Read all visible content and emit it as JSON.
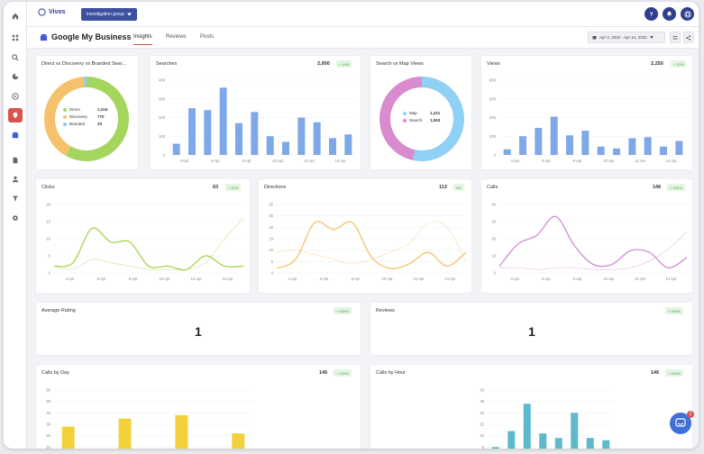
{
  "topbar": {
    "logo_text": "Vivos",
    "workspace_label": "investigation group",
    "help_icon": "question-icon",
    "bell_icon": "bell-icon",
    "user_icon": "user-icon"
  },
  "sidebar": {
    "items": [
      "home-icon",
      "grid-icon",
      "search-icon",
      "chart-icon",
      "chat-icon",
      "location-icon",
      "gmb-icon",
      "document-icon",
      "user-icon",
      "filter-icon",
      "settings-icon"
    ]
  },
  "subbar": {
    "title": "Google My Business",
    "tabs": [
      {
        "label": "Insights"
      },
      {
        "label": "Reviews"
      },
      {
        "label": "Posts"
      }
    ],
    "date_range": "Apr 3, 2022 - Apr 14, 2022"
  },
  "colors": {
    "direct": "#a4d65e",
    "discovery": "#f5c26b",
    "branded": "#8fc8f0",
    "bars": "#7fa8e8",
    "maps": "#8fd0f5",
    "search": "#d98bcf",
    "clicks": "#a8d34d",
    "directions": "#f2c368",
    "calls": "#d28bd6",
    "calls_by_day": "#f2d13c",
    "calls_by_hour": "#5fb9cc"
  },
  "cards": {
    "direct_discovery": {
      "title": "Direct vs Discovery vs Branded Sear...",
      "legend": [
        {
          "label": "Direct",
          "value": "1,104"
        },
        {
          "label": "Discovery",
          "value": "770"
        },
        {
          "label": "Branded",
          "value": "20"
        }
      ]
    },
    "searches": {
      "title": "Searches",
      "value": "2,000",
      "badge": "+ 10%"
    },
    "search_maps": {
      "title": "Search vs Map Views",
      "legend": [
        {
          "label": "Map",
          "value": "1,221"
        },
        {
          "label": "Search",
          "value": "1,063"
        }
      ]
    },
    "views": {
      "title": "Views",
      "value": "2,250",
      "badge": "+ 12%"
    },
    "clicks": {
      "title": "Clicks",
      "value": "63",
      "badge": "+ 21%"
    },
    "directions": {
      "title": "Directions",
      "value": "113",
      "badge": "0%"
    },
    "calls": {
      "title": "Calls",
      "value": "146",
      "badge": "+ 100%"
    },
    "average_rating": {
      "title": "Average Rating",
      "value": "1",
      "badge": "+ 100%"
    },
    "reviews": {
      "title": "Reviews",
      "value": "1",
      "badge": "+ 100%"
    },
    "calls_by_day": {
      "title": "Calls by Day",
      "value": "146",
      "badge": "+ 100%"
    },
    "calls_by_hour": {
      "title": "Calls by Hour",
      "value": "146",
      "badge": "+ 100%"
    }
  },
  "chat": {
    "notification_count": "1"
  },
  "chart_data": [
    {
      "id": "direct_discovery",
      "type": "pie",
      "categories": [
        "Direct",
        "Discovery",
        "Branded"
      ],
      "values": [
        1104,
        770,
        20
      ]
    },
    {
      "id": "searches",
      "type": "bar",
      "x_ticks": [
        "4 Apr",
        "6 Apr",
        "8 Apr",
        "10 Apr",
        "12 Apr",
        "14 Apr"
      ],
      "values": [
        60,
        250,
        240,
        360,
        170,
        230,
        100,
        70,
        200,
        175,
        90,
        110
      ],
      "y_ticks": [
        0,
        100,
        200,
        300,
        400
      ],
      "ylim": [
        0,
        400
      ]
    },
    {
      "id": "search_maps",
      "type": "pie",
      "categories": [
        "Map",
        "Search"
      ],
      "values": [
        1221,
        1063
      ]
    },
    {
      "id": "views",
      "type": "bar",
      "x_ticks": [
        "4 Apr",
        "6 Apr",
        "8 Apr",
        "10 Apr",
        "12 Apr",
        "14 Apr"
      ],
      "values": [
        60,
        200,
        290,
        410,
        210,
        260,
        90,
        70,
        180,
        190,
        90,
        150
      ],
      "y_ticks": [
        0,
        200,
        400,
        600,
        800
      ],
      "ylim": [
        0,
        800
      ]
    },
    {
      "id": "clicks",
      "type": "line",
      "x_ticks": [
        "4 Apr",
        "6 Apr",
        "8 Apr",
        "10 Apr",
        "12 Apr",
        "14 Apr"
      ],
      "series": [
        {
          "values": [
            2,
            3,
            13,
            9,
            9,
            2,
            2,
            1,
            5,
            2,
            2
          ]
        },
        {
          "values": [
            2,
            1,
            4,
            3,
            2,
            1,
            1,
            1,
            3,
            10,
            16
          ]
        }
      ],
      "y_ticks": [
        0,
        5,
        10,
        15,
        20
      ],
      "ylim": [
        0,
        20
      ]
    },
    {
      "id": "directions",
      "type": "line",
      "x_ticks": [
        "4 Apr",
        "6 Apr",
        "8 Apr",
        "10 Apr",
        "12 Apr",
        "14 Apr"
      ],
      "series": [
        {
          "values": [
            2,
            6,
            22,
            19,
            22,
            7,
            2,
            4,
            9,
            3,
            9
          ]
        },
        {
          "values": [
            9,
            10,
            8,
            6,
            4,
            6,
            9,
            13,
            22,
            20,
            5
          ]
        }
      ],
      "y_ticks": [
        0,
        5,
        10,
        15,
        20,
        25,
        30
      ],
      "ylim": [
        0,
        30
      ]
    },
    {
      "id": "calls",
      "type": "line",
      "x_ticks": [
        "4 Apr",
        "6 Apr",
        "8 Apr",
        "10 Apr",
        "12 Apr",
        "14 Apr"
      ],
      "series": [
        {
          "values": [
            4,
            17,
            22,
            33,
            16,
            5,
            5,
            13,
            12,
            3,
            9
          ]
        },
        {
          "values": [
            3,
            3,
            2,
            3,
            3,
            2,
            2,
            3,
            7,
            14,
            24
          ]
        }
      ],
      "y_ticks": [
        0,
        10,
        20,
        30,
        40
      ],
      "ylim": [
        0,
        40
      ]
    },
    {
      "id": "calls_by_day",
      "type": "bar",
      "values": [
        28,
        0,
        35,
        0,
        38,
        0,
        22
      ],
      "y_ticks": [
        0,
        10,
        20,
        30,
        40,
        50,
        60
      ],
      "ylim": [
        0,
        60
      ]
    },
    {
      "id": "calls_by_hour",
      "type": "bar",
      "values": [
        5,
        12,
        24,
        11,
        9,
        20,
        9,
        8
      ],
      "y_ticks": [
        0,
        5,
        10,
        15,
        20,
        25,
        30
      ],
      "ylim": [
        0,
        30
      ]
    }
  ]
}
